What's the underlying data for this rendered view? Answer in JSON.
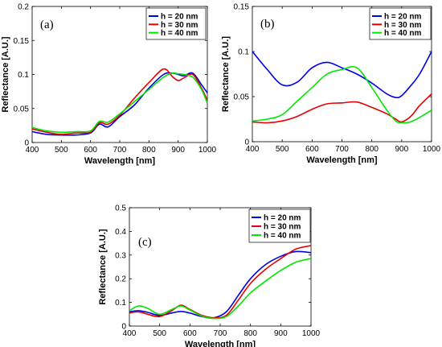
{
  "chart_data": [
    {
      "type": "line",
      "panel_label": "(a)",
      "xlabel": "Wavelength [nm]",
      "ylabel": "Reflectance [A.U.]",
      "xlim": [
        400,
        1000
      ],
      "ylim": [
        0,
        0.2
      ],
      "xticks": [
        "400",
        "500",
        "600",
        "700",
        "800",
        "900",
        "1000"
      ],
      "yticks": [
        "0",
        "0.05",
        "0.1",
        "0.15",
        "0.2"
      ],
      "grid": false,
      "legend_position": "top-right",
      "x": [
        400,
        450,
        500,
        550,
        600,
        630,
        660,
        700,
        750,
        800,
        850,
        880,
        900,
        920,
        950,
        980,
        1000
      ],
      "series": [
        {
          "name": "h = 20 nm",
          "color": "#0000e6",
          "values": [
            0.016,
            0.012,
            0.011,
            0.011,
            0.014,
            0.027,
            0.023,
            0.038,
            0.055,
            0.08,
            0.1,
            0.102,
            0.1,
            0.098,
            0.102,
            0.085,
            0.073
          ]
        },
        {
          "name": "h = 30 nm",
          "color": "#e60000",
          "values": [
            0.02,
            0.015,
            0.012,
            0.014,
            0.015,
            0.029,
            0.027,
            0.04,
            0.065,
            0.088,
            0.108,
            0.097,
            0.091,
            0.095,
            0.1,
            0.08,
            0.062
          ]
        },
        {
          "name": "h = 40 nm",
          "color": "#00e600",
          "values": [
            0.022,
            0.017,
            0.015,
            0.016,
            0.017,
            0.031,
            0.03,
            0.042,
            0.06,
            0.078,
            0.096,
            0.102,
            0.101,
            0.1,
            0.096,
            0.078,
            0.058
          ]
        }
      ]
    },
    {
      "type": "line",
      "panel_label": "(b)",
      "xlabel": "Wavelength [nm]",
      "ylabel": "Reflectance [A.U.]",
      "xlim": [
        400,
        1000
      ],
      "ylim": [
        0,
        0.15
      ],
      "xticks": [
        "400",
        "500",
        "600",
        "700",
        "800",
        "900",
        "1000"
      ],
      "yticks": [
        "0",
        "0.05",
        "0.1",
        "0.15"
      ],
      "grid": false,
      "legend_position": "top-right",
      "x": [
        400,
        450,
        500,
        550,
        600,
        650,
        700,
        750,
        800,
        850,
        880,
        900,
        930,
        960,
        1000
      ],
      "series": [
        {
          "name": "h = 20 nm",
          "color": "#0000e6",
          "values": [
            0.1,
            0.08,
            0.063,
            0.066,
            0.082,
            0.088,
            0.082,
            0.075,
            0.065,
            0.053,
            0.049,
            0.051,
            0.062,
            0.075,
            0.1
          ]
        },
        {
          "name": "h = 30 nm",
          "color": "#e60000",
          "values": [
            0.022,
            0.021,
            0.023,
            0.028,
            0.036,
            0.042,
            0.043,
            0.044,
            0.038,
            0.031,
            0.025,
            0.022,
            0.028,
            0.04,
            0.053
          ]
        },
        {
          "name": "h = 40 nm",
          "color": "#00e600",
          "values": [
            0.023,
            0.025,
            0.03,
            0.045,
            0.06,
            0.075,
            0.08,
            0.082,
            0.06,
            0.035,
            0.023,
            0.021,
            0.022,
            0.027,
            0.035
          ]
        }
      ]
    },
    {
      "type": "line",
      "panel_label": "(c)",
      "xlabel": "Wavelength [nm]",
      "ylabel": "Reflectance [A.U.]",
      "xlim": [
        400,
        1000
      ],
      "ylim": [
        0,
        0.5
      ],
      "xticks": [
        "400",
        "500",
        "600",
        "700",
        "800",
        "900",
        "1000"
      ],
      "yticks": [
        "0",
        "0.1",
        "0.2",
        "0.3",
        "0.4",
        "0.5"
      ],
      "grid": false,
      "legend_position": "top-right",
      "x": [
        400,
        430,
        460,
        500,
        540,
        570,
        600,
        640,
        680,
        720,
        760,
        800,
        850,
        900,
        950,
        1000
      ],
      "series": [
        {
          "name": "h = 20 nm",
          "color": "#0000e6",
          "values": [
            0.06,
            0.065,
            0.058,
            0.045,
            0.055,
            0.062,
            0.055,
            0.04,
            0.035,
            0.06,
            0.13,
            0.2,
            0.26,
            0.295,
            0.315,
            0.31
          ]
        },
        {
          "name": "h = 30 nm",
          "color": "#e60000",
          "values": [
            0.055,
            0.06,
            0.05,
            0.04,
            0.065,
            0.088,
            0.07,
            0.045,
            0.035,
            0.045,
            0.11,
            0.18,
            0.24,
            0.285,
            0.325,
            0.34
          ]
        },
        {
          "name": "h = 40 nm",
          "color": "#00e600",
          "values": [
            0.065,
            0.085,
            0.075,
            0.05,
            0.07,
            0.085,
            0.068,
            0.042,
            0.032,
            0.04,
            0.085,
            0.14,
            0.19,
            0.235,
            0.27,
            0.285
          ]
        }
      ]
    }
  ]
}
